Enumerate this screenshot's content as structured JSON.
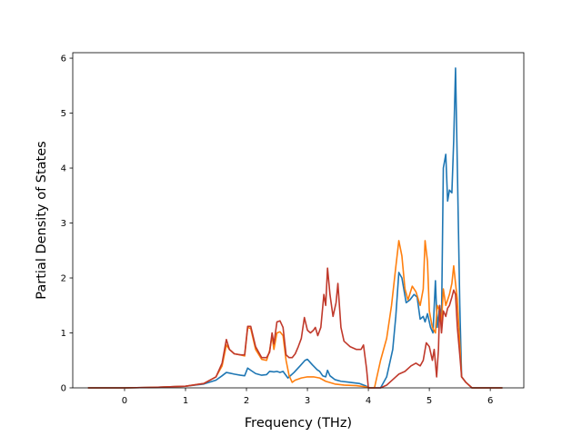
{
  "chart_data": {
    "type": "line",
    "title": "",
    "xlabel": "Frequency (THz)",
    "ylabel": "Partial Density of States",
    "xlim": [
      -0.85,
      6.55
    ],
    "ylim": [
      0,
      6.1
    ],
    "x_ticks": [
      0,
      1,
      2,
      3,
      4,
      5,
      6
    ],
    "y_ticks": [
      0,
      1,
      2,
      3,
      4,
      5,
      6
    ],
    "grid": false,
    "legend": "none",
    "series": [
      {
        "color": "#1f77b4",
        "points": [
          [
            -0.6,
            0
          ],
          [
            0,
            0
          ],
          [
            0.5,
            0.01
          ],
          [
            1,
            0.03
          ],
          [
            1.3,
            0.07
          ],
          [
            1.5,
            0.14
          ],
          [
            1.6,
            0.22
          ],
          [
            1.67,
            0.28
          ],
          [
            1.72,
            0.27
          ],
          [
            1.8,
            0.25
          ],
          [
            1.9,
            0.23
          ],
          [
            1.97,
            0.22
          ],
          [
            2.02,
            0.36
          ],
          [
            2.07,
            0.32
          ],
          [
            2.15,
            0.26
          ],
          [
            2.25,
            0.23
          ],
          [
            2.33,
            0.24
          ],
          [
            2.38,
            0.3
          ],
          [
            2.45,
            0.29
          ],
          [
            2.5,
            0.3
          ],
          [
            2.55,
            0.28
          ],
          [
            2.6,
            0.3
          ],
          [
            2.68,
            0.18
          ],
          [
            2.78,
            0.28
          ],
          [
            2.88,
            0.4
          ],
          [
            2.96,
            0.5
          ],
          [
            3.0,
            0.52
          ],
          [
            3.08,
            0.42
          ],
          [
            3.16,
            0.33
          ],
          [
            3.2,
            0.3
          ],
          [
            3.25,
            0.22
          ],
          [
            3.3,
            0.2
          ],
          [
            3.33,
            0.32
          ],
          [
            3.37,
            0.22
          ],
          [
            3.45,
            0.15
          ],
          [
            3.55,
            0.12
          ],
          [
            3.7,
            0.1
          ],
          [
            3.85,
            0.08
          ],
          [
            3.95,
            0.04
          ],
          [
            4.02,
            0
          ],
          [
            4.2,
            0
          ],
          [
            4.3,
            0.2
          ],
          [
            4.4,
            0.7
          ],
          [
            4.45,
            1.3
          ],
          [
            4.5,
            2.1
          ],
          [
            4.55,
            2.0
          ],
          [
            4.62,
            1.55
          ],
          [
            4.68,
            1.6
          ],
          [
            4.75,
            1.7
          ],
          [
            4.8,
            1.65
          ],
          [
            4.85,
            1.25
          ],
          [
            4.9,
            1.3
          ],
          [
            4.93,
            1.2
          ],
          [
            4.97,
            1.35
          ],
          [
            5.02,
            1.1
          ],
          [
            5.06,
            1.0
          ],
          [
            5.1,
            1.95
          ],
          [
            5.13,
            1.1
          ],
          [
            5.17,
            1.5
          ],
          [
            5.2,
            1.2
          ],
          [
            5.23,
            4.0
          ],
          [
            5.27,
            4.25
          ],
          [
            5.3,
            3.4
          ],
          [
            5.33,
            3.6
          ],
          [
            5.37,
            3.55
          ],
          [
            5.4,
            4.5
          ],
          [
            5.43,
            5.82
          ],
          [
            5.46,
            4.0
          ],
          [
            5.5,
            1.5
          ],
          [
            5.53,
            0.2
          ],
          [
            5.6,
            0.1
          ],
          [
            5.7,
            0
          ],
          [
            6.2,
            0
          ]
        ]
      },
      {
        "color": "#ff7f0e",
        "points": [
          [
            -0.6,
            0
          ],
          [
            0,
            0
          ],
          [
            0.5,
            0.01
          ],
          [
            1,
            0.03
          ],
          [
            1.3,
            0.08
          ],
          [
            1.5,
            0.2
          ],
          [
            1.6,
            0.4
          ],
          [
            1.67,
            0.78
          ],
          [
            1.72,
            0.7
          ],
          [
            1.8,
            0.62
          ],
          [
            1.9,
            0.6
          ],
          [
            1.97,
            0.58
          ],
          [
            2.02,
            1.1
          ],
          [
            2.07,
            1.08
          ],
          [
            2.15,
            0.7
          ],
          [
            2.25,
            0.52
          ],
          [
            2.33,
            0.5
          ],
          [
            2.38,
            0.68
          ],
          [
            2.42,
            0.95
          ],
          [
            2.45,
            0.7
          ],
          [
            2.5,
            1.0
          ],
          [
            2.55,
            1.02
          ],
          [
            2.6,
            0.95
          ],
          [
            2.65,
            0.5
          ],
          [
            2.7,
            0.22
          ],
          [
            2.75,
            0.1
          ],
          [
            2.8,
            0.14
          ],
          [
            2.9,
            0.18
          ],
          [
            3.0,
            0.2
          ],
          [
            3.1,
            0.2
          ],
          [
            3.2,
            0.18
          ],
          [
            3.3,
            0.12
          ],
          [
            3.45,
            0.07
          ],
          [
            3.6,
            0.05
          ],
          [
            3.8,
            0.04
          ],
          [
            3.95,
            0.02
          ],
          [
            4.0,
            0
          ],
          [
            4.1,
            0
          ],
          [
            4.2,
            0.5
          ],
          [
            4.3,
            0.9
          ],
          [
            4.38,
            1.5
          ],
          [
            4.45,
            2.2
          ],
          [
            4.5,
            2.68
          ],
          [
            4.55,
            2.4
          ],
          [
            4.6,
            1.8
          ],
          [
            4.65,
            1.6
          ],
          [
            4.72,
            1.85
          ],
          [
            4.78,
            1.75
          ],
          [
            4.85,
            1.5
          ],
          [
            4.9,
            1.8
          ],
          [
            4.93,
            2.68
          ],
          [
            4.97,
            2.3
          ],
          [
            5.0,
            1.4
          ],
          [
            5.05,
            1.1
          ],
          [
            5.1,
            1.0
          ],
          [
            5.13,
            1.5
          ],
          [
            5.17,
            1.4
          ],
          [
            5.2,
            1.2
          ],
          [
            5.23,
            1.8
          ],
          [
            5.27,
            1.5
          ],
          [
            5.3,
            1.6
          ],
          [
            5.33,
            1.7
          ],
          [
            5.37,
            1.9
          ],
          [
            5.4,
            2.22
          ],
          [
            5.43,
            1.9
          ],
          [
            5.46,
            1.6
          ],
          [
            5.5,
            0.8
          ],
          [
            5.53,
            0.2
          ],
          [
            5.6,
            0.1
          ],
          [
            5.7,
            0
          ],
          [
            6.2,
            0
          ]
        ]
      },
      {
        "color": "#c0392b",
        "points": [
          [
            -0.6,
            0
          ],
          [
            0,
            0
          ],
          [
            0.5,
            0.01
          ],
          [
            1,
            0.03
          ],
          [
            1.3,
            0.08
          ],
          [
            1.5,
            0.2
          ],
          [
            1.6,
            0.45
          ],
          [
            1.67,
            0.88
          ],
          [
            1.72,
            0.7
          ],
          [
            1.8,
            0.62
          ],
          [
            1.9,
            0.6
          ],
          [
            1.97,
            0.6
          ],
          [
            2.02,
            1.12
          ],
          [
            2.07,
            1.12
          ],
          [
            2.15,
            0.75
          ],
          [
            2.25,
            0.55
          ],
          [
            2.33,
            0.55
          ],
          [
            2.38,
            0.65
          ],
          [
            2.42,
            1.0
          ],
          [
            2.45,
            0.8
          ],
          [
            2.5,
            1.2
          ],
          [
            2.55,
            1.22
          ],
          [
            2.6,
            1.1
          ],
          [
            2.65,
            0.6
          ],
          [
            2.7,
            0.55
          ],
          [
            2.75,
            0.55
          ],
          [
            2.8,
            0.62
          ],
          [
            2.85,
            0.75
          ],
          [
            2.9,
            0.9
          ],
          [
            2.95,
            1.28
          ],
          [
            3.0,
            1.05
          ],
          [
            3.05,
            1.0
          ],
          [
            3.1,
            1.05
          ],
          [
            3.13,
            1.1
          ],
          [
            3.17,
            0.95
          ],
          [
            3.22,
            1.1
          ],
          [
            3.27,
            1.7
          ],
          [
            3.3,
            1.5
          ],
          [
            3.33,
            2.18
          ],
          [
            3.37,
            1.7
          ],
          [
            3.42,
            1.3
          ],
          [
            3.47,
            1.55
          ],
          [
            3.5,
            1.9
          ],
          [
            3.55,
            1.1
          ],
          [
            3.6,
            0.85
          ],
          [
            3.7,
            0.75
          ],
          [
            3.8,
            0.7
          ],
          [
            3.88,
            0.7
          ],
          [
            3.92,
            0.78
          ],
          [
            3.97,
            0.35
          ],
          [
            4.0,
            0
          ],
          [
            4.2,
            0
          ],
          [
            4.3,
            0.05
          ],
          [
            4.4,
            0.15
          ],
          [
            4.5,
            0.25
          ],
          [
            4.6,
            0.3
          ],
          [
            4.7,
            0.4
          ],
          [
            4.78,
            0.45
          ],
          [
            4.85,
            0.4
          ],
          [
            4.9,
            0.5
          ],
          [
            4.95,
            0.82
          ],
          [
            5.0,
            0.75
          ],
          [
            5.05,
            0.5
          ],
          [
            5.08,
            0.7
          ],
          [
            5.12,
            0.2
          ],
          [
            5.15,
            0.7
          ],
          [
            5.17,
            1.5
          ],
          [
            5.2,
            1.0
          ],
          [
            5.23,
            1.4
          ],
          [
            5.27,
            1.3
          ],
          [
            5.3,
            1.45
          ],
          [
            5.33,
            1.5
          ],
          [
            5.37,
            1.65
          ],
          [
            5.4,
            1.78
          ],
          [
            5.43,
            1.7
          ],
          [
            5.46,
            1.1
          ],
          [
            5.5,
            0.6
          ],
          [
            5.53,
            0.2
          ],
          [
            5.6,
            0.1
          ],
          [
            5.7,
            0
          ],
          [
            6.2,
            0
          ]
        ]
      }
    ]
  }
}
